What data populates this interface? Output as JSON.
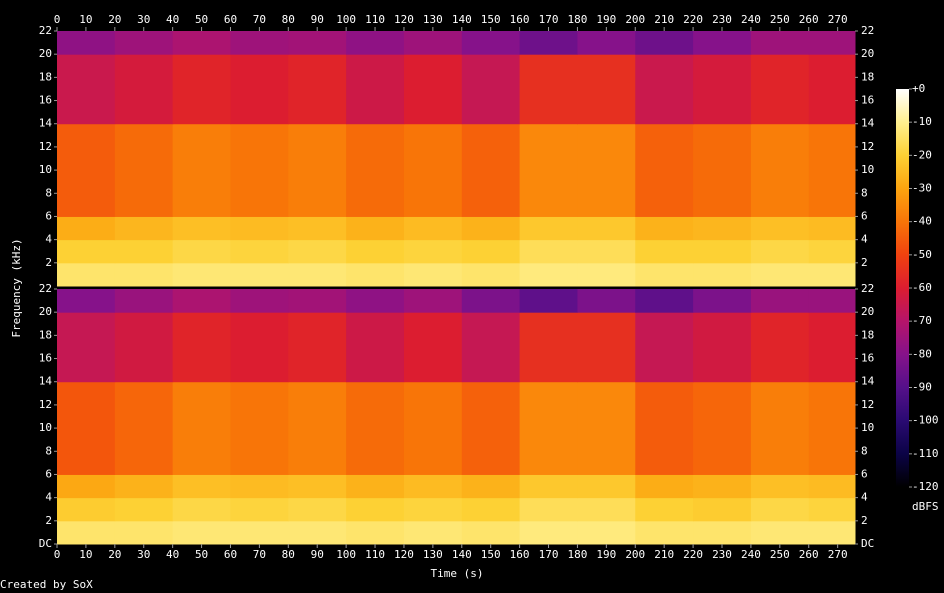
{
  "chart_data": {
    "type": "heatmap",
    "xlabel": "Time (s)",
    "ylabel": "Frequency (kHz)",
    "colorbar_label": "dBFS",
    "footer": "Created by SoX",
    "xlim": [
      0,
      276
    ],
    "xticks": [
      0,
      10,
      20,
      30,
      40,
      50,
      60,
      70,
      80,
      90,
      100,
      110,
      120,
      130,
      140,
      150,
      160,
      170,
      180,
      190,
      200,
      210,
      220,
      230,
      240,
      250,
      260,
      270
    ],
    "x_edges": [
      0,
      20,
      40,
      60,
      80,
      100,
      120,
      140,
      160,
      180,
      200,
      220,
      240,
      260,
      276
    ],
    "y_edges": [
      0,
      2,
      4,
      6,
      14,
      20,
      22
    ],
    "ylim": [
      0,
      22
    ],
    "zlim": [
      -120,
      0
    ],
    "zticks": [
      {
        "value": 0,
        "label": "+0"
      },
      -10,
      -20,
      -30,
      -40,
      -50,
      -60,
      -70,
      -80,
      -90,
      -100,
      -110,
      -120
    ],
    "colormap": [
      "#000000",
      "#0b0346",
      "#2a0a72",
      "#55108a",
      "#86128a",
      "#b5146a",
      "#dc1d30",
      "#f0420f",
      "#f87508",
      "#fca40f",
      "#fdd134",
      "#fff08f",
      "#ffffff"
    ],
    "channels": [
      {
        "yticks": [
          2,
          4,
          6,
          8,
          10,
          12,
          14,
          16,
          18,
          20,
          22
        ],
        "values": [
          [
            -14,
            -14,
            -13,
            -13,
            -13,
            -14,
            -13,
            -14,
            -12,
            -12,
            -14,
            -14,
            -13,
            -13
          ],
          [
            -20,
            -20,
            -18,
            -19,
            -18,
            -20,
            -19,
            -20,
            -16,
            -16,
            -20,
            -20,
            -18,
            -19
          ],
          [
            -28,
            -26,
            -24,
            -25,
            -24,
            -27,
            -25,
            -27,
            -22,
            -22,
            -27,
            -26,
            -24,
            -25
          ],
          [
            -45,
            -42,
            -38,
            -40,
            -38,
            -42,
            -40,
            -44,
            -36,
            -36,
            -44,
            -42,
            -38,
            -40
          ],
          [
            -65,
            -62,
            -58,
            -60,
            -58,
            -64,
            -60,
            -66,
            -55,
            -55,
            -65,
            -62,
            -58,
            -60
          ],
          [
            -78,
            -75,
            -72,
            -75,
            -74,
            -78,
            -75,
            -80,
            -85,
            -80,
            -85,
            -80,
            -75,
            -75
          ]
        ]
      },
      {
        "yticks": [
          {
            "value": 0,
            "label": "DC"
          },
          2,
          4,
          6,
          8,
          10,
          12,
          14,
          16,
          18,
          20,
          22
        ],
        "values": [
          [
            -14,
            -14,
            -13,
            -13,
            -13,
            -14,
            -13,
            -14,
            -12,
            -12,
            -14,
            -14,
            -13,
            -13
          ],
          [
            -21,
            -20,
            -18,
            -19,
            -18,
            -20,
            -19,
            -20,
            -16,
            -16,
            -20,
            -21,
            -18,
            -19
          ],
          [
            -29,
            -27,
            -24,
            -25,
            -24,
            -27,
            -25,
            -27,
            -22,
            -22,
            -28,
            -27,
            -24,
            -25
          ],
          [
            -46,
            -43,
            -38,
            -40,
            -38,
            -42,
            -40,
            -44,
            -36,
            -36,
            -45,
            -43,
            -38,
            -40
          ],
          [
            -66,
            -63,
            -58,
            -60,
            -58,
            -64,
            -60,
            -66,
            -55,
            -55,
            -66,
            -63,
            -58,
            -60
          ],
          [
            -80,
            -76,
            -72,
            -75,
            -74,
            -78,
            -75,
            -82,
            -88,
            -82,
            -88,
            -82,
            -76,
            -76
          ]
        ]
      }
    ]
  }
}
